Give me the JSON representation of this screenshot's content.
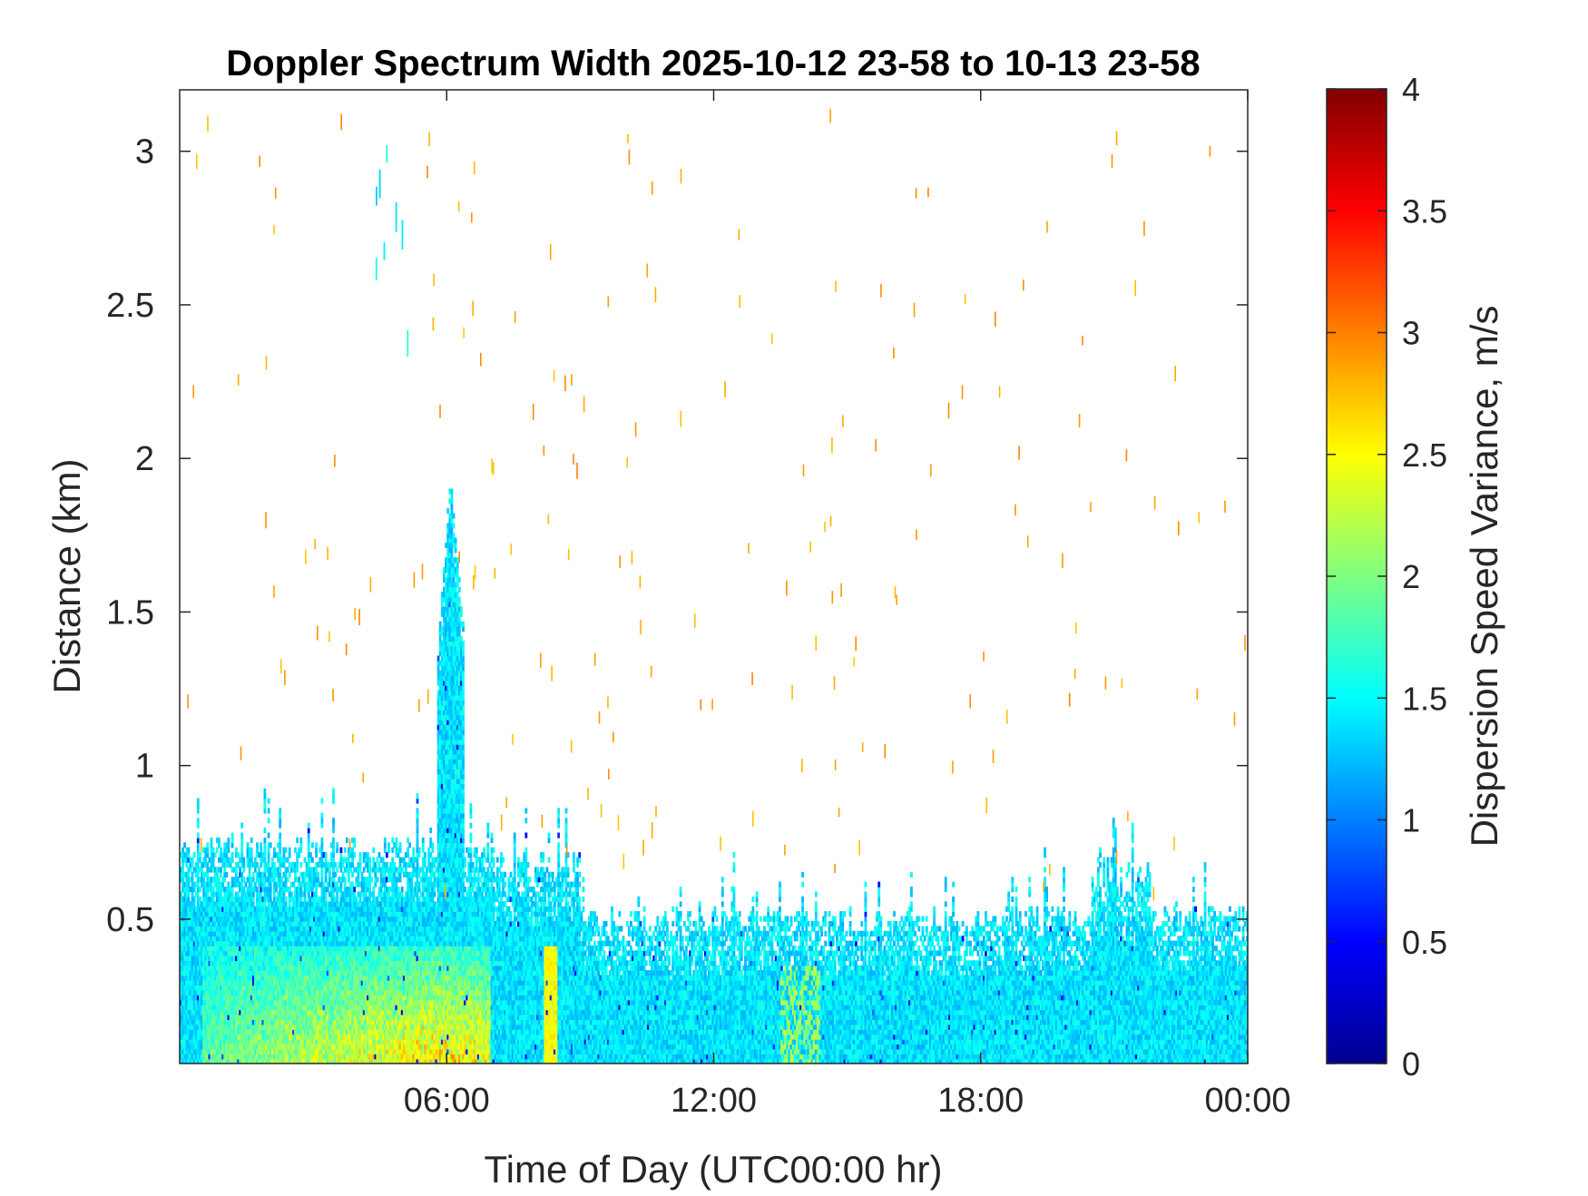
{
  "chart_data": {
    "type": "heatmap",
    "title": "Doppler Spectrum Width 2025-10-12 23-58 to 10-13 23-58",
    "xlabel": "Time of Day (UTC00:00 hr)",
    "ylabel": "Distance (km)",
    "x_range_hours": [
      0,
      24
    ],
    "ylim": [
      0.03,
      3.2
    ],
    "x_ticks": [
      {
        "value": 6,
        "label": "06:00"
      },
      {
        "value": 12,
        "label": "12:00"
      },
      {
        "value": 18,
        "label": "18:00"
      },
      {
        "value": 24,
        "label": "00:00"
      }
    ],
    "y_ticks": [
      {
        "value": 0.5,
        "label": "0.5"
      },
      {
        "value": 1,
        "label": "1"
      },
      {
        "value": 1.5,
        "label": "1.5"
      },
      {
        "value": 2,
        "label": "2"
      },
      {
        "value": 2.5,
        "label": "2.5"
      },
      {
        "value": 3,
        "label": "3"
      }
    ],
    "colorbar": {
      "label": "Dispersion Speed Variance, m/s",
      "range": [
        0,
        4
      ],
      "colormap": "jet",
      "ticks": [
        {
          "value": 0,
          "label": "0"
        },
        {
          "value": 0.5,
          "label": "0.5"
        },
        {
          "value": 1,
          "label": "1"
        },
        {
          "value": 1.5,
          "label": "1.5"
        },
        {
          "value": 2,
          "label": "2"
        },
        {
          "value": 2.5,
          "label": "2.5"
        },
        {
          "value": 3,
          "label": "3"
        },
        {
          "value": 3.5,
          "label": "3.5"
        },
        {
          "value": 4,
          "label": "4"
        }
      ]
    },
    "grid": false,
    "features": [
      {
        "name": "boundary-layer-echo",
        "x_hours": [
          0,
          24
        ],
        "top_km": [
          0.45,
          0.7
        ],
        "typical_value": 1.4
      },
      {
        "name": "morning-high-width-core",
        "x_hours": [
          0.5,
          7
        ],
        "top_km": 0.4,
        "typical_value": 2.8
      },
      {
        "name": "plume-spike",
        "x_hours": [
          5.8,
          6.4
        ],
        "top_km": 1.95,
        "typical_value": 1.5
      },
      {
        "name": "band-0820",
        "x_hours": [
          8.2,
          8.5
        ],
        "top_km": 0.4,
        "typical_value": 2.5
      }
    ]
  }
}
